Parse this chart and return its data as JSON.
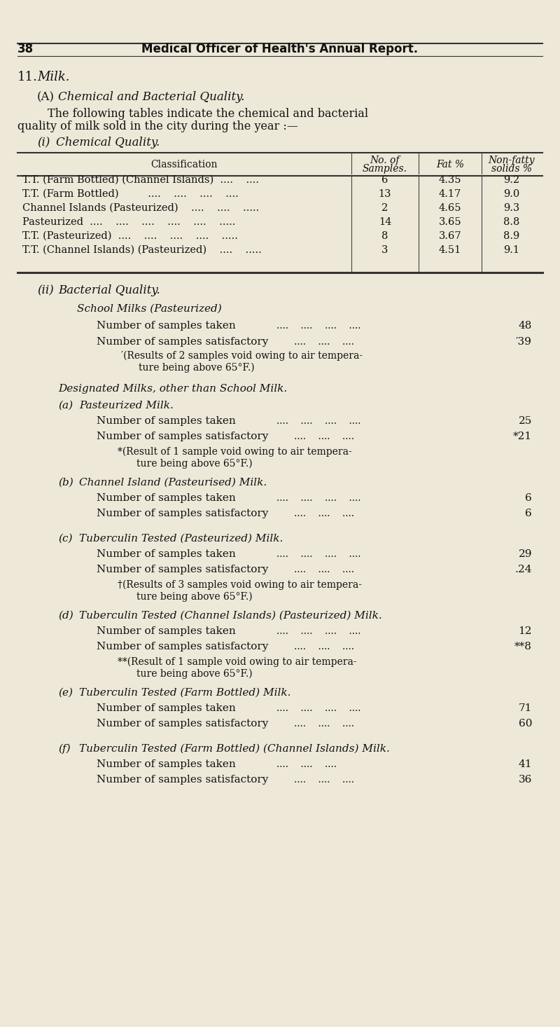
{
  "bg_color": "#ede8d8",
  "text_color": "#111111",
  "page_number": "38",
  "header": "Medical Officer of Health's Annual Report.",
  "table_rows": [
    [
      "T.T. (Farm Bottled) (Channel Islands)  ....    ....",
      "6",
      "4.35",
      "9.2"
    ],
    [
      "T.T. (Farm Bottled)         ....    ....    ....    ....",
      "13",
      "4.17",
      "9.0"
    ],
    [
      "Channel Islands (Pasteurized)    ....    ....    .....",
      "2",
      "4.65",
      "9.3"
    ],
    [
      "Pasteurized  ....    ....    ....    ....    ....    .....",
      "14",
      "3.65",
      "8.8"
    ],
    [
      "T.T. (Pasteurized)  ....    ....    ....    ....    .....",
      "8",
      "3.67",
      "8.9"
    ],
    [
      "T.T. (Channel Islands) (Pasteurized)    ....    .....",
      "3",
      "4.51",
      "9.1"
    ]
  ],
  "sections": [
    {
      "letter": "(a)",
      "title": "Pasteurized Milk.",
      "lines": [
        [
          "Number of samples taken",
          "....    ....    ....    ....",
          "25"
        ],
        [
          "Number of samples satisfactory",
          "....    ....    ....",
          "*21"
        ]
      ],
      "note": "*(Result of 1 sample void owing to air tempera-\nture being above 65°F.)"
    },
    {
      "letter": "(b)",
      "title": "Channel Island (Pasteurised) Milk.",
      "lines": [
        [
          "Number of samples taken",
          "....    ....    ....    ....",
          "6"
        ],
        [
          "Number of samples satisfactory",
          "....    ....    ....",
          "6"
        ]
      ],
      "note": ""
    },
    {
      "letter": "(c)",
      "title": "Tuberculin Tested (Pasteurized) Milk.",
      "lines": [
        [
          "Number of samples taken",
          "....    ....    ....    ....",
          "29"
        ],
        [
          "Number of samples satisfactory",
          "....    ....    ....",
          "․24"
        ]
      ],
      "note": "†(Results of 3 samples void owing to air tempera-\nture being above 65°F.)"
    },
    {
      "letter": "(d)",
      "title": "Tuberculin Tested (Channel Islands) (Pasteurized) Milk.",
      "lines": [
        [
          "Number of samples taken",
          "....    ....    ....    ....",
          "12"
        ],
        [
          "Number of samples satisfactory",
          "....    ....    ....",
          "**8"
        ]
      ],
      "note": "**(Result of 1 sample void owing to air tempera-\nture being above 65°F.)"
    },
    {
      "letter": "(e)",
      "title": "Tuberculin Tested (Farm Bottled) Milk.",
      "lines": [
        [
          "Number of samples taken",
          "....    ....    ....    ....",
          "71"
        ],
        [
          "Number of samples satisfactory",
          "....    ....    ....",
          "60"
        ]
      ],
      "note": ""
    },
    {
      "letter": "(f)",
      "title": "Tuberculin Tested (Farm Bottled) (Channel Islands) Milk.",
      "lines": [
        [
          "Number of samples taken",
          "....    ....    ....",
          "41"
        ],
        [
          "Number of samples satisfactory",
          "....    ....    ....",
          "36"
        ]
      ],
      "note": ""
    }
  ]
}
